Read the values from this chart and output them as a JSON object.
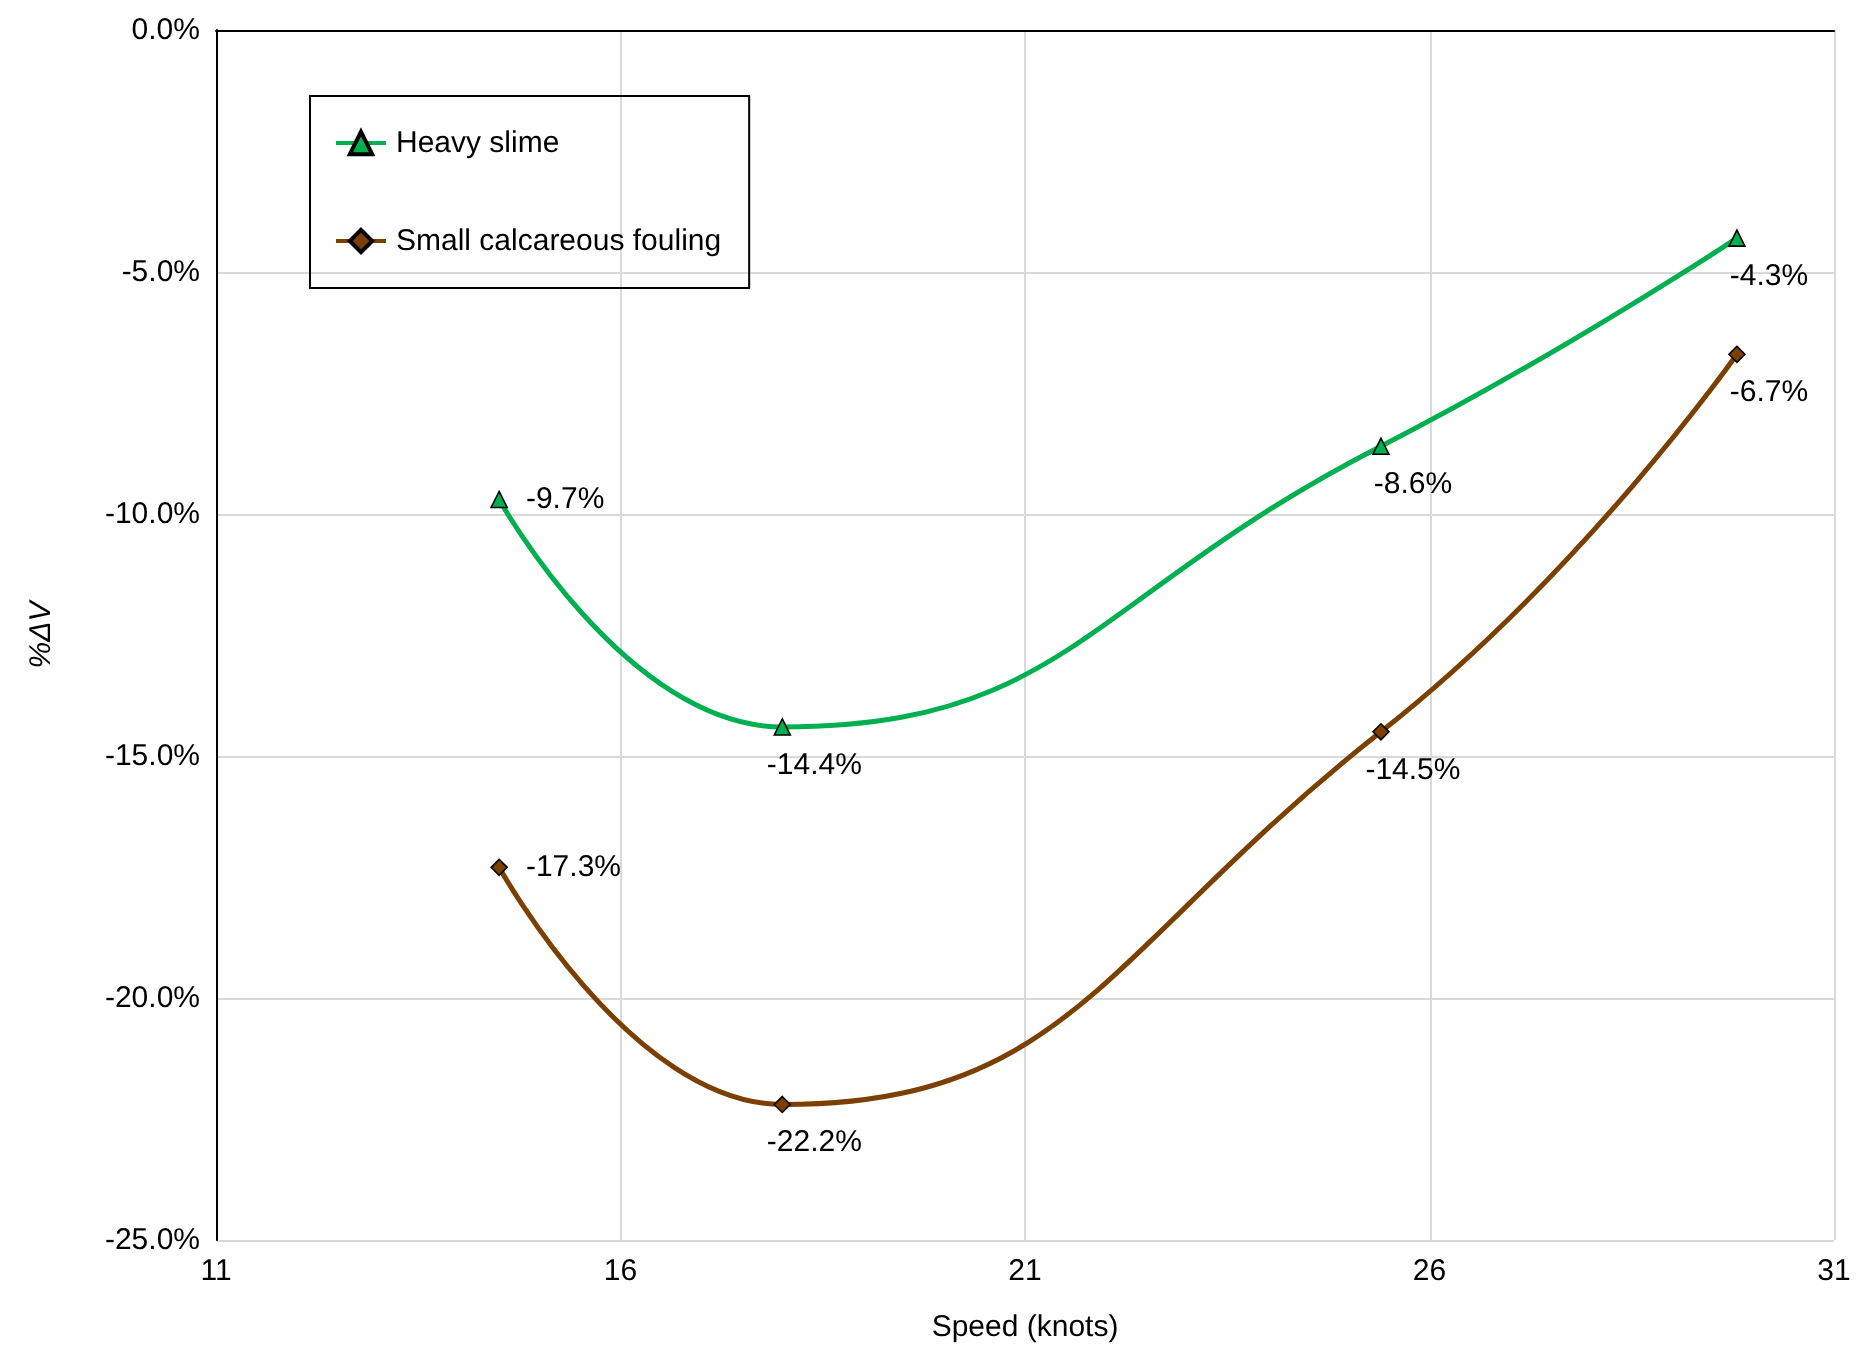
{
  "chart_data": {
    "type": "line",
    "xlabel": "Speed (knots)",
    "ylabel": "%ΔV",
    "x": [
      14.5,
      18.0,
      25.4,
      29.8
    ],
    "series": [
      {
        "name": "Heavy slime",
        "color": "#00b050",
        "marker": "triangle",
        "values": [
          -9.7,
          -14.4,
          -8.6,
          -4.3
        ],
        "value_labels": [
          "-9.7%",
          "-14.4%",
          "-8.6%",
          "-4.3%"
        ]
      },
      {
        "name": "Small calcareous fouling",
        "color": "#7b3f00",
        "marker": "diamond",
        "values": [
          -17.3,
          -22.2,
          -14.5,
          -6.7
        ],
        "value_labels": [
          "-17.3%",
          "-22.2%",
          "-14.5%",
          "-6.7%"
        ]
      }
    ],
    "xlim": [
      11,
      31
    ],
    "xticks": [
      11,
      16,
      21,
      26,
      31
    ],
    "ylim": [
      -25,
      0
    ],
    "yticks": [
      {
        "value": -25,
        "label": "-25.0%"
      },
      {
        "value": -20,
        "label": "-20.0%"
      },
      {
        "value": -15,
        "label": "-15.0%"
      },
      {
        "value": -10,
        "label": "-10.0%"
      },
      {
        "value": -5,
        "label": "-5.0%"
      },
      {
        "value": 0,
        "label": "0.0%"
      }
    ],
    "grid": true,
    "legend": "top left"
  }
}
